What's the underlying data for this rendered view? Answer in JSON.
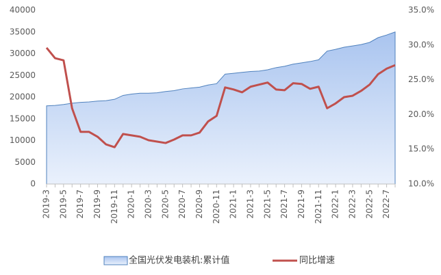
{
  "chart_data": {
    "type": "combo",
    "categories": [
      "2019-3",
      null,
      "2019-5",
      null,
      "2019-7",
      null,
      "2019-9",
      null,
      "2019-11",
      null,
      "2020-1",
      null,
      "2020-3",
      null,
      "2020-5",
      null,
      "2020-7",
      null,
      "2020-9",
      null,
      "2020-11",
      null,
      "2021-1",
      null,
      "2021-3",
      null,
      "2021-5",
      null,
      "2021-7",
      null,
      "2021-9",
      null,
      "2021-11",
      null,
      "2022-1",
      null,
      "2022-3",
      null,
      "2022-5",
      null,
      "2022-7",
      null
    ],
    "series": [
      {
        "name": "全国光伏发电装机:累计值",
        "type": "area",
        "color": "#4f81bd",
        "values": [
          18000,
          18100,
          18300,
          18600,
          18800,
          18900,
          19100,
          19200,
          19500,
          20400,
          20700,
          20900,
          20900,
          21000,
          21300,
          21500,
          21900,
          22100,
          22300,
          22800,
          23100,
          25300,
          25500,
          25700,
          25900,
          26000,
          26300,
          26800,
          27100,
          27600,
          27900,
          28200,
          28600,
          30600,
          31000,
          31500,
          31800,
          32100,
          32600,
          33700,
          34300,
          35000
        ]
      },
      {
        "name": "同比增速",
        "type": "line",
        "axis": "y2",
        "color": "#c0504d",
        "values": [
          29.6,
          28.1,
          27.8,
          20.9,
          17.5,
          17.5,
          16.8,
          15.7,
          15.3,
          17.2,
          17.0,
          16.8,
          16.3,
          16.1,
          15.9,
          16.4,
          17.0,
          17.0,
          17.4,
          19.0,
          19.8,
          23.9,
          23.6,
          23.2,
          24.0,
          24.3,
          24.6,
          23.6,
          23.5,
          24.5,
          24.4,
          23.7,
          24.0,
          20.9,
          21.6,
          22.5,
          22.7,
          23.4,
          24.3,
          25.8,
          26.6,
          27.1
        ]
      }
    ],
    "ylim": [
      0,
      40000
    ],
    "yticks": [
      0,
      5000,
      10000,
      15000,
      20000,
      25000,
      30000,
      35000,
      40000
    ],
    "y2lim": [
      10,
      35
    ],
    "y2ticks": [
      {
        "value": 10,
        "label": "10.0%"
      },
      {
        "value": 15,
        "label": "15.0%"
      },
      {
        "value": 20,
        "label": "20.0%"
      },
      {
        "value": 25,
        "label": "25.0%"
      },
      {
        "value": 30,
        "label": "30.0%"
      },
      {
        "value": 35,
        "label": "35.0%"
      }
    ],
    "grid": false,
    "legend": "bottom"
  }
}
